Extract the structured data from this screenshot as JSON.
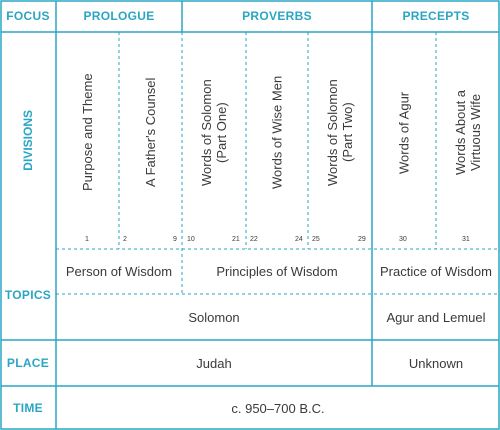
{
  "colors": {
    "accent": "#2aa6c4",
    "text": "#3a3a3a",
    "rule": "#2aa6c4"
  },
  "row_labels": {
    "focus": "FOCUS",
    "divisions": "DIVISIONS",
    "topics": "TOPICS",
    "place": "PLACE",
    "time": "TIME"
  },
  "focus": [
    "PROLOGUE",
    "PROVERBS",
    "PRECEPTS"
  ],
  "divisions": [
    {
      "label": "Purpose and Theme",
      "start": "1",
      "end": ""
    },
    {
      "label": "A Father's Counsel",
      "start": "2",
      "end": "9"
    },
    {
      "label": "Words of Solomon\n(Part One)",
      "start": "10",
      "end": "21"
    },
    {
      "label": "Words of Wise Men",
      "start": "22",
      "end": "24"
    },
    {
      "label": "Words of Solomon\n(Part Two)",
      "start": "25",
      "end": "29"
    },
    {
      "label": "Words of Agur",
      "start": "30",
      "end": ""
    },
    {
      "label": "Words About a\nVirtuous Wife",
      "start": "31",
      "end": ""
    }
  ],
  "topics_row1": [
    "Person of Wisdom",
    "Principles of Wisdom",
    "Practice of Wisdom"
  ],
  "topics_row2": [
    "Solomon",
    "Agur and Lemuel"
  ],
  "place": [
    "Judah",
    "Unknown"
  ],
  "time": "c. 950–700 B.C."
}
